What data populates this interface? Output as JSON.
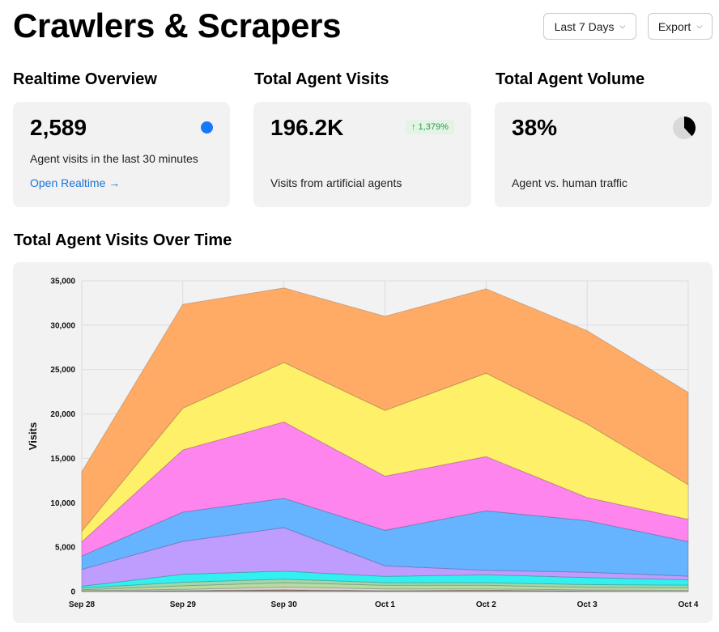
{
  "header": {
    "title": "Crawlers & Scrapers",
    "range_label": "Last 7 Days",
    "export_label": "Export"
  },
  "realtime": {
    "section_title": "Realtime Overview",
    "value": "2,589",
    "description": "Agent visits in the last 30 minutes",
    "link": "Open Realtime →",
    "dot_color": "#1677ff"
  },
  "visits": {
    "section_title": "Total Agent Visits",
    "value": "196.2K",
    "badge": "↑ 1,379%",
    "description": "Visits from artificial agents"
  },
  "volume": {
    "section_title": "Total Agent Volume",
    "value": "38%",
    "percent": 0.38,
    "description": "Agent vs. human traffic"
  },
  "chart_section_title": "Total Agent Visits Over Time",
  "chart_data": {
    "type": "area",
    "stacked": true,
    "x": [
      "Sep 28",
      "Sep 29",
      "Sep 30",
      "Oct 1",
      "Oct 2",
      "Oct 3",
      "Oct 4"
    ],
    "ylabel": "Visits",
    "ylim": [
      0,
      35000
    ],
    "yticks": [
      0,
      5000,
      10000,
      15000,
      20000,
      25000,
      30000,
      35000
    ],
    "ytick_labels": [
      "0",
      "5,000",
      "10,000",
      "15,000",
      "20,000",
      "25,000",
      "30,000",
      "35,000"
    ],
    "grid": true,
    "series": [
      {
        "color": "#9a7f6f",
        "values": [
          50,
          100,
          200,
          100,
          150,
          80,
          50
        ]
      },
      {
        "color": "#d8d8d8",
        "values": [
          50,
          150,
          300,
          200,
          150,
          100,
          80
        ]
      },
      {
        "color": "#b8dca0",
        "values": [
          100,
          400,
          500,
          400,
          400,
          300,
          300
        ]
      },
      {
        "color": "#9fd8b0",
        "values": [
          200,
          400,
          400,
          300,
          300,
          300,
          300
        ]
      },
      {
        "color": "#33f0f0",
        "values": [
          200,
          900,
          900,
          700,
          900,
          800,
          600
        ]
      },
      {
        "color": "#bf9dff",
        "values": [
          1900,
          3700,
          4900,
          1200,
          500,
          600,
          400
        ]
      },
      {
        "color": "#66b3ff",
        "values": [
          1500,
          3300,
          3300,
          4000,
          6700,
          5800,
          3900
        ]
      },
      {
        "color": "#ff85ee",
        "values": [
          1600,
          7000,
          8600,
          6100,
          6100,
          2600,
          2500
        ]
      },
      {
        "color": "#fff06a",
        "values": [
          1200,
          4700,
          6700,
          7400,
          9400,
          8300,
          3900
        ]
      },
      {
        "color": "#ffab66",
        "values": [
          6700,
          11700,
          8400,
          10600,
          9500,
          10500,
          10400
        ]
      }
    ]
  }
}
